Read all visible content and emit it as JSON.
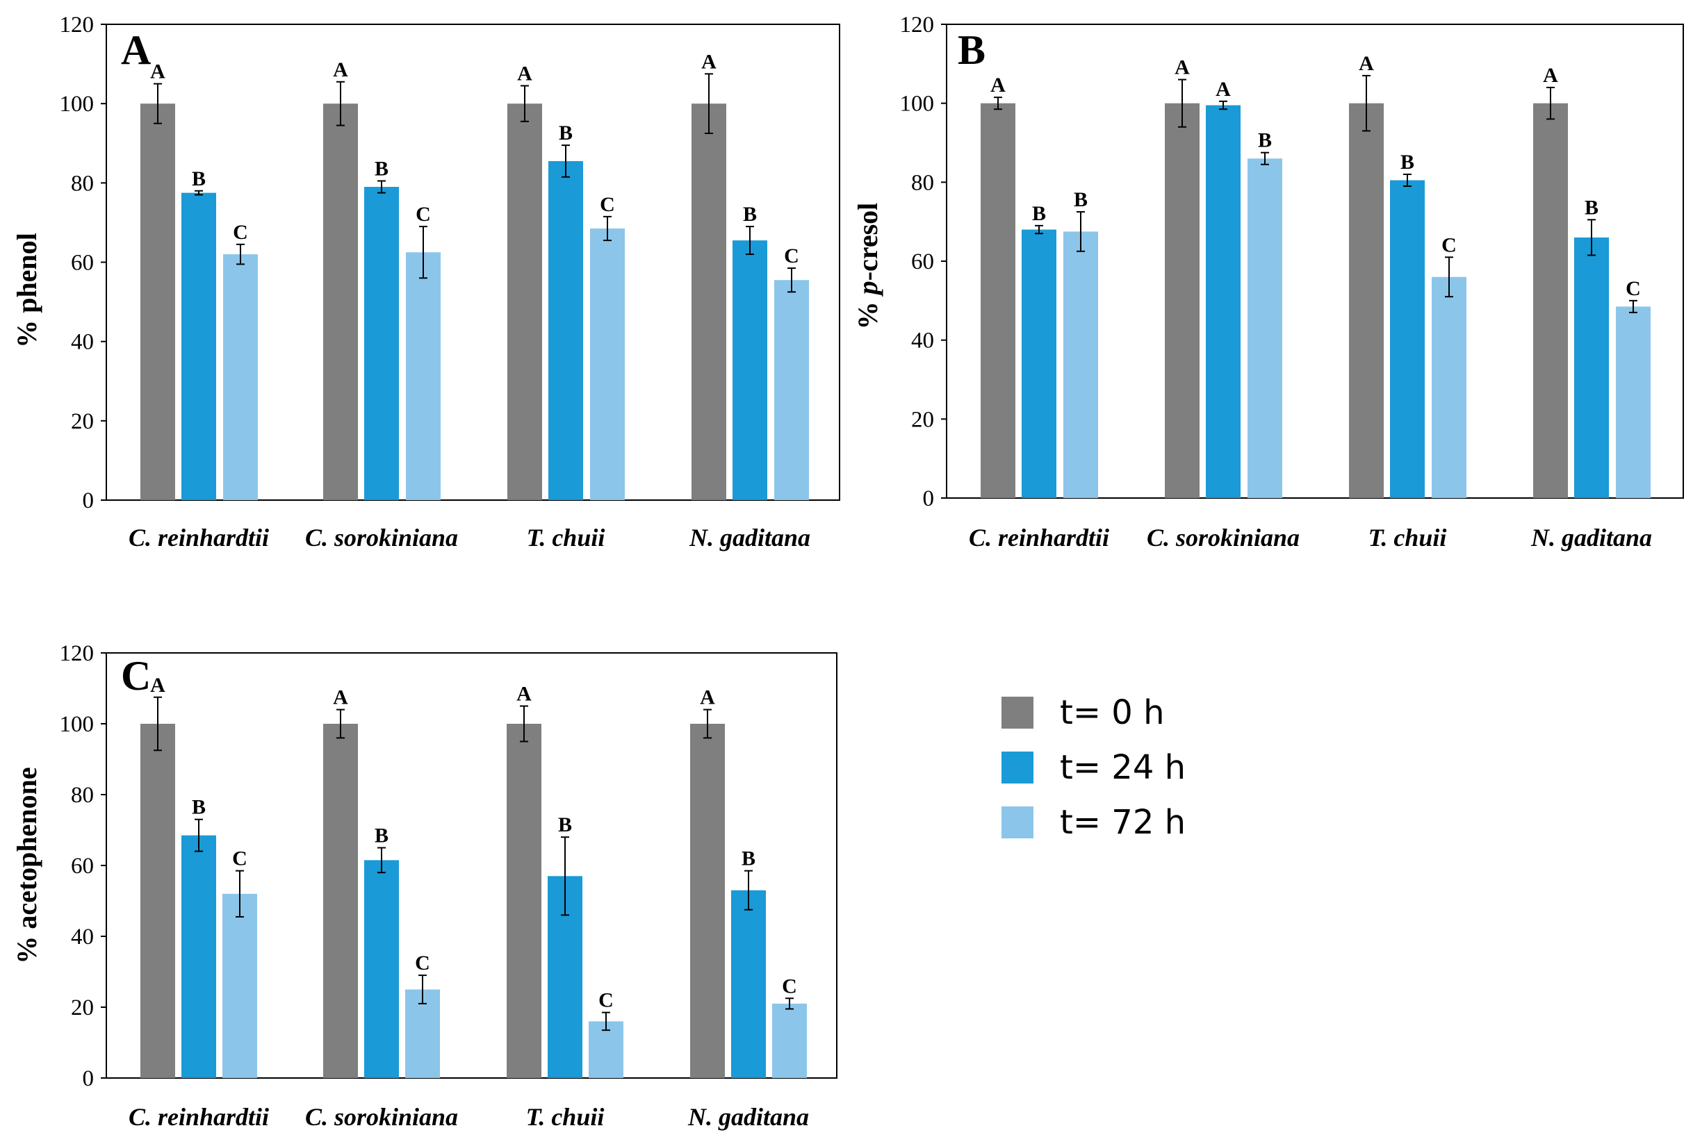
{
  "colors": {
    "t0": "#7f7f7f",
    "t24": "#1a9ad6",
    "t72": "#8cc5ea",
    "axis": "#000000"
  },
  "legend": [
    "t= 0 h",
    "t= 24 h",
    "t= 72 h"
  ],
  "chart_data": [
    {
      "type": "bar",
      "panel": "A",
      "ylabel": "% phenol",
      "ylim": [
        0,
        120
      ],
      "yticks": [
        "0",
        "20",
        "40",
        "60",
        "80",
        "100",
        "120"
      ],
      "categories": [
        "C. reinhardtii",
        "C. sorokiniana",
        "T. chuii",
        "N. gaditana"
      ],
      "series": [
        {
          "name": "t= 0 h",
          "values": [
            100,
            100,
            100,
            100
          ],
          "errors": [
            5,
            5.5,
            4.5,
            7.5
          ],
          "labels": [
            "A",
            "A",
            "A",
            "A"
          ]
        },
        {
          "name": "t= 24 h",
          "values": [
            77.5,
            79,
            85.5,
            65.5
          ],
          "errors": [
            0.5,
            1.5,
            4,
            3.5
          ],
          "labels": [
            "B",
            "B",
            "B",
            "B"
          ]
        },
        {
          "name": "t= 72 h",
          "values": [
            62,
            62.5,
            68.5,
            55.5
          ],
          "errors": [
            2.5,
            6.5,
            3,
            3
          ],
          "labels": [
            "C",
            "C",
            "C",
            "C"
          ]
        }
      ]
    },
    {
      "type": "bar",
      "panel": "B",
      "ylabel_prefix": "% ",
      "ylabel_italic": "p",
      "ylabel_suffix": "-cresol",
      "ylim": [
        0,
        120
      ],
      "yticks": [
        "0",
        "20",
        "40",
        "60",
        "80",
        "100",
        "120"
      ],
      "categories": [
        "C. reinhardtii",
        "C. sorokiniana",
        "T. chuii",
        "N. gaditana"
      ],
      "series": [
        {
          "name": "t= 0 h",
          "values": [
            100,
            100,
            100,
            100
          ],
          "errors": [
            1.5,
            6,
            7,
            4
          ],
          "labels": [
            "A",
            "A",
            "A",
            "A"
          ]
        },
        {
          "name": "t= 24 h",
          "values": [
            68,
            99.5,
            80.5,
            66
          ],
          "errors": [
            1,
            1,
            1.5,
            4.5
          ],
          "labels": [
            "B",
            "A",
            "B",
            "B"
          ]
        },
        {
          "name": "t= 72 h",
          "values": [
            67.5,
            86,
            56,
            48.5
          ],
          "errors": [
            5,
            1.5,
            5,
            1.5
          ],
          "labels": [
            "B",
            "B",
            "C",
            "C"
          ]
        }
      ]
    },
    {
      "type": "bar",
      "panel": "C",
      "ylabel": "% acetophenone",
      "ylim": [
        0,
        120
      ],
      "yticks": [
        "0",
        "20",
        "40",
        "60",
        "80",
        "100",
        "120"
      ],
      "categories": [
        "C. reinhardtii",
        "C. sorokiniana",
        "T. chuii",
        "N. gaditana"
      ],
      "series": [
        {
          "name": "t= 0 h",
          "values": [
            100,
            100,
            100,
            100
          ],
          "errors": [
            7.5,
            4,
            5,
            4
          ],
          "labels": [
            "A",
            "A",
            "A",
            "A"
          ]
        },
        {
          "name": "t= 24 h",
          "values": [
            68.5,
            61.5,
            57,
            53
          ],
          "errors": [
            4.5,
            3.5,
            11,
            5.5
          ],
          "labels": [
            "B",
            "B",
            "B",
            "B"
          ]
        },
        {
          "name": "t= 72 h",
          "values": [
            52,
            25,
            16,
            21
          ],
          "errors": [
            6.5,
            4,
            2.5,
            1.5
          ],
          "labels": [
            "C",
            "C",
            "C",
            "C"
          ]
        }
      ]
    }
  ]
}
